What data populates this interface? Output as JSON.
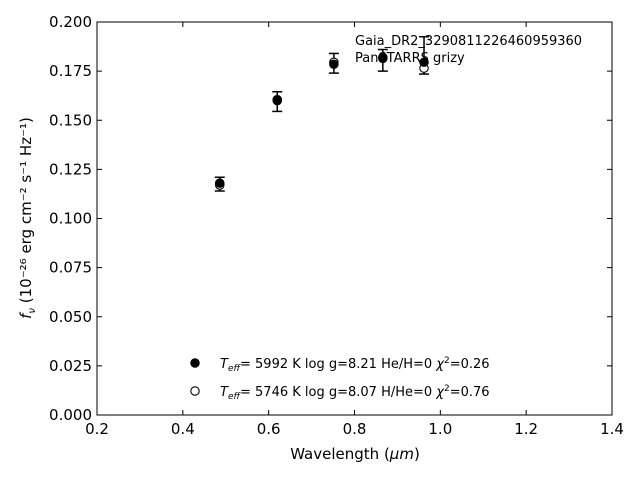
{
  "chart_data": {
    "type": "scatter",
    "title": "",
    "xlabel": "Wavelength",
    "xlabel_unit": "μm",
    "ylabel_prefix": "f",
    "ylabel_sub": "ν",
    "ylabel_units": "10⁻²⁶ erg cm⁻² s⁻¹ Hz⁻¹",
    "xlim": [
      0.2,
      1.4
    ],
    "ylim": [
      0.0,
      0.2
    ],
    "xticks": [
      "0.2",
      "0.4",
      "0.6",
      "0.8",
      "1.0",
      "1.2",
      "1.4"
    ],
    "yticks": [
      "0.000",
      "0.025",
      "0.050",
      "0.075",
      "0.100",
      "0.125",
      "0.150",
      "0.175",
      "0.200"
    ],
    "grid": false,
    "annotation": {
      "line1": "Gaia_DR2_3290811226460959360",
      "line2": "PanSTARRS grizy"
    },
    "observed": [
      {
        "x": 0.486,
        "y": 0.1175,
        "err": 0.0035
      },
      {
        "x": 0.62,
        "y": 0.1595,
        "err": 0.005
      },
      {
        "x": 0.752,
        "y": 0.179,
        "err": 0.005
      },
      {
        "x": 0.866,
        "y": 0.1805,
        "err": 0.0055
      },
      {
        "x": 0.962,
        "y": 0.183,
        "err": 0.0095
      }
    ],
    "series": [
      {
        "marker": "filled",
        "legend": {
          "teff": "5992 K",
          "logg": "8.21",
          "comp": "He/H=0",
          "chi2": "0.26"
        },
        "x": [
          0.486,
          0.62,
          0.752,
          0.866,
          0.962
        ],
        "y": [
          0.118,
          0.1605,
          0.1785,
          0.1815,
          0.1795
        ]
      },
      {
        "marker": "open",
        "legend": {
          "teff": "5746 K",
          "logg": "8.07",
          "comp": "H/He=0",
          "chi2": "0.76"
        },
        "x": [
          0.486,
          0.62,
          0.752,
          0.866,
          0.962
        ],
        "y": [
          0.117,
          0.16,
          0.1795,
          0.182,
          0.1765
        ]
      }
    ],
    "legend_placement": "bottom-center"
  }
}
